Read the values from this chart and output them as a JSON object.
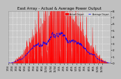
{
  "title": "East Array - Actual & Average Power Output",
  "background_color": "#c0c0c0",
  "plot_bg_color": "#c8c8c8",
  "grid_color": "#ffffff",
  "bar_color": "#ff0000",
  "avg_color": "#0000ff",
  "ylim": [
    0,
    8
  ],
  "yticks": [
    0,
    1,
    2,
    3,
    4,
    5,
    6,
    7,
    8
  ],
  "num_points": 700,
  "legend_actual": "Actual Output",
  "legend_avg": "Average Output",
  "title_fontsize": 4.0,
  "tick_fontsize": 3.0,
  "spine_color": "#888888"
}
